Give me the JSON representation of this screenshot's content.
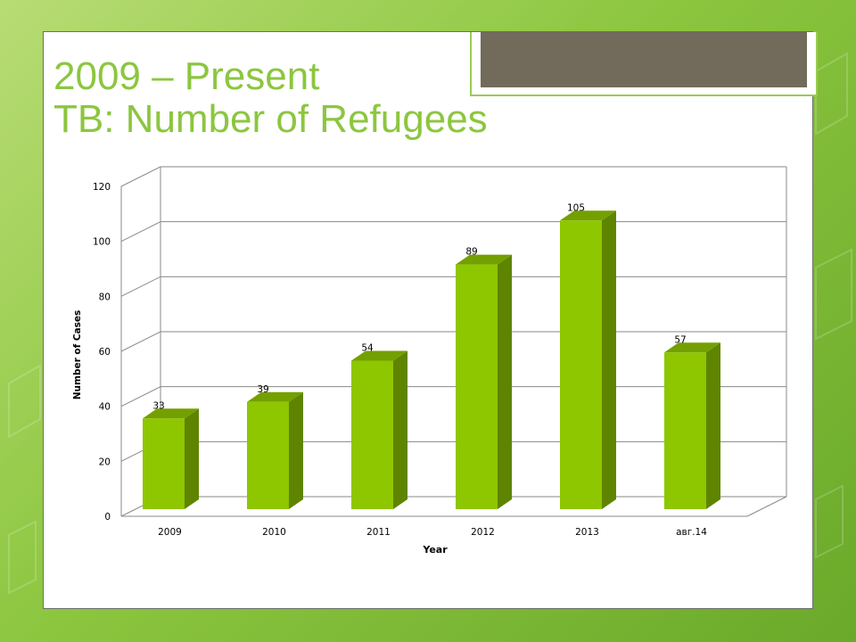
{
  "slide": {
    "title_line1": "2009 – Present",
    "title_line2": "TB: Number of Refugees"
  },
  "colors": {
    "bar_front": "#8ec600",
    "bar_side": "#5f8400",
    "bar_top": "#73a000",
    "title": "#8cc63f"
  },
  "chart_data": {
    "type": "bar",
    "categories": [
      "2009",
      "2010",
      "2011",
      "2012",
      "2013",
      "авг.14"
    ],
    "values": [
      33,
      39,
      54,
      89,
      105,
      57
    ],
    "data_labels": [
      "33",
      "39",
      "54",
      "89",
      "105",
      "57"
    ],
    "y_ticks": [
      "0",
      "20",
      "40",
      "60",
      "80",
      "100",
      "120"
    ],
    "xlabel": "Year",
    "ylabel": "Number of Cases",
    "ylim": [
      0,
      120
    ],
    "grid": true,
    "legend": "none",
    "style": "3d-column"
  }
}
